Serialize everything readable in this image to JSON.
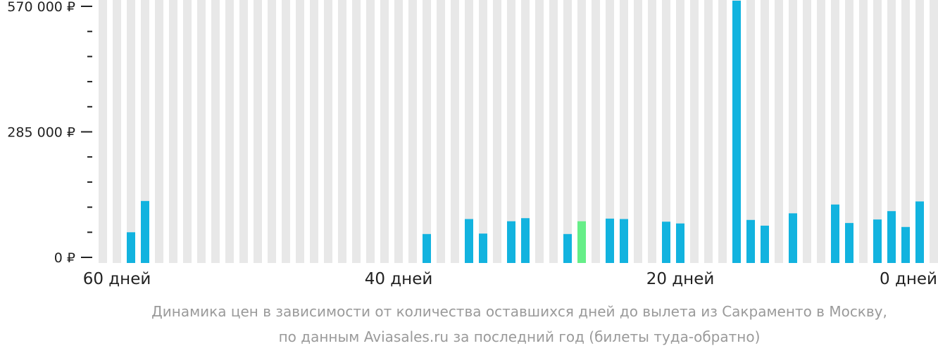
{
  "chart_data": {
    "type": "bar",
    "x": [
      61,
      60,
      59,
      58,
      57,
      56,
      55,
      54,
      53,
      52,
      51,
      50,
      49,
      48,
      47,
      46,
      45,
      44,
      43,
      42,
      41,
      40,
      39,
      38,
      37,
      36,
      35,
      34,
      33,
      32,
      31,
      30,
      29,
      28,
      27,
      26,
      25,
      24,
      23,
      22,
      21,
      20,
      19,
      18,
      17,
      16,
      15,
      14,
      13,
      12,
      11,
      10,
      9,
      8,
      7,
      6,
      5,
      4,
      3,
      2,
      1,
      0
    ],
    "values": [
      null,
      null,
      57000,
      128000,
      null,
      null,
      null,
      null,
      null,
      null,
      null,
      null,
      null,
      null,
      null,
      null,
      null,
      null,
      null,
      null,
      null,
      null,
      null,
      53000,
      null,
      null,
      87000,
      54000,
      null,
      82000,
      89000,
      null,
      null,
      53000,
      82000,
      null,
      88000,
      87000,
      null,
      null,
      81000,
      77000,
      null,
      null,
      null,
      585000,
      85000,
      72000,
      null,
      100000,
      null,
      null,
      120000,
      78000,
      null,
      86000,
      105000,
      69000,
      127000,
      null,
      null,
      null
    ],
    "highlight_index": 34,
    "y_ticks": [
      "0 ₽",
      "285 000 ₽",
      "570 000 ₽"
    ],
    "y_tick_values": [
      0,
      285000,
      570000
    ],
    "x_ticks": [
      "60 дней",
      "40 дней",
      "20 дней",
      "0 дней"
    ],
    "x_tick_values": [
      60,
      40,
      20,
      0
    ],
    "ylim": [
      0,
      570000
    ],
    "colors": {
      "bar": "#12b3df",
      "highlight": "#66ee88",
      "background_column": "#e8e8e8",
      "axis": "#222222",
      "caption": "#9a9a9a"
    }
  },
  "caption": {
    "line1": "Динамика цен в зависимости от количества оставшихся дней до вылета из Сакраменто в Москву,",
    "line2": "по данным Aviasales.ru за последний год (билеты туда-обратно)"
  }
}
